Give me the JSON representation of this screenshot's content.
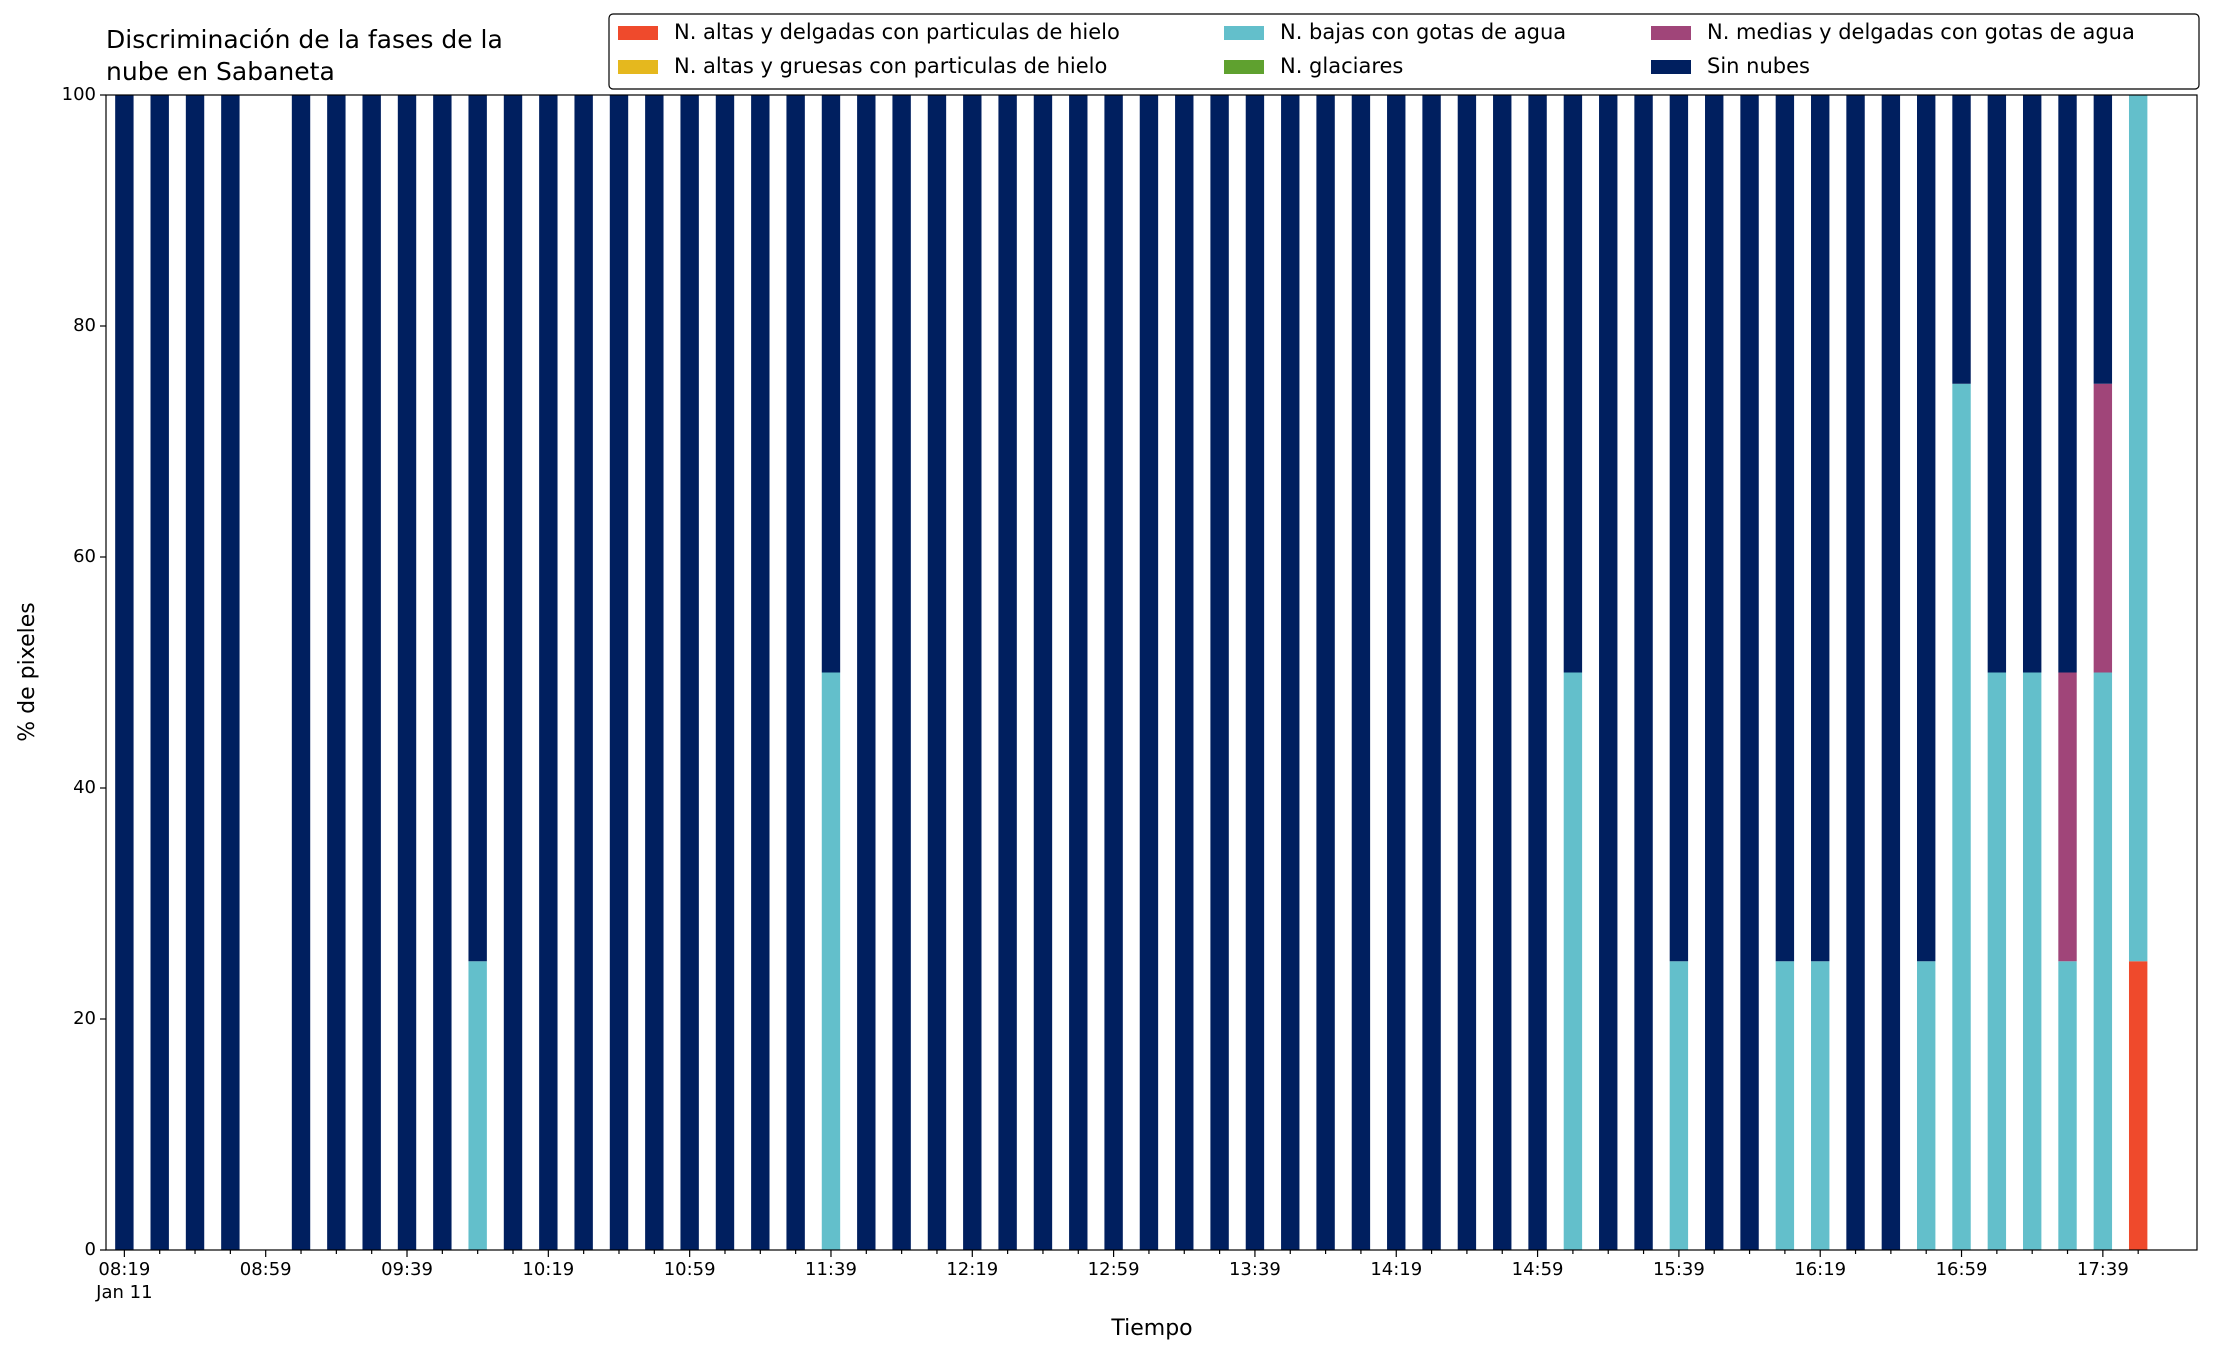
{
  "chart_data": {
    "type": "bar",
    "stacked": true,
    "title": [
      "Discriminación de la fases de la",
      "nube en Sabaneta"
    ],
    "x_label": "Tiempo",
    "y_label": "% de pixeles",
    "categories": [
      "08:19",
      null,
      null,
      null,
      "08:59",
      null,
      null,
      null,
      "09:39",
      null,
      null,
      null,
      "10:19",
      null,
      null,
      null,
      "10:59",
      null,
      null,
      null,
      "11:39",
      null,
      null,
      null,
      "12:19",
      null,
      null,
      null,
      "12:59",
      null,
      null,
      null,
      "13:39",
      null,
      null,
      null,
      "14:19",
      null,
      null,
      null,
      "14:59",
      null,
      null,
      null,
      "15:39",
      null,
      null,
      null,
      "16:19",
      null,
      null,
      null,
      "16:59",
      null,
      null,
      null,
      "17:39",
      null
    ],
    "date_label": "Jan 11",
    "series": [
      {
        "name": "N. altas y delgadas con particulas de hielo",
        "color": "#ef4a2c",
        "values": [
          0,
          0,
          0,
          0,
          0,
          0,
          0,
          0,
          0,
          0,
          0,
          0,
          0,
          0,
          0,
          0,
          0,
          0,
          0,
          0,
          0,
          0,
          0,
          0,
          0,
          0,
          0,
          0,
          0,
          0,
          0,
          0,
          0,
          0,
          0,
          0,
          0,
          0,
          0,
          0,
          0,
          0,
          0,
          0,
          0,
          0,
          0,
          0,
          0,
          0,
          0,
          0,
          0,
          0,
          0,
          0,
          0,
          25
        ]
      },
      {
        "name": "N. altas y gruesas con particulas de hielo",
        "color": "#e5b81e",
        "values": [
          0,
          0,
          0,
          0,
          0,
          0,
          0,
          0,
          0,
          0,
          0,
          0,
          0,
          0,
          0,
          0,
          0,
          0,
          0,
          0,
          0,
          0,
          0,
          0,
          0,
          0,
          0,
          0,
          0,
          0,
          0,
          0,
          0,
          0,
          0,
          0,
          0,
          0,
          0,
          0,
          0,
          0,
          0,
          0,
          0,
          0,
          0,
          0,
          0,
          0,
          0,
          0,
          0,
          0,
          0,
          0,
          0,
          0
        ]
      },
      {
        "name": "N. bajas con gotas de agua",
        "color": "#63bfcb",
        "values": [
          0,
          0,
          0,
          0,
          0,
          0,
          0,
          0,
          0,
          0,
          25,
          0,
          0,
          0,
          0,
          0,
          0,
          0,
          0,
          0,
          50,
          0,
          0,
          0,
          0,
          0,
          0,
          0,
          0,
          0,
          0,
          0,
          0,
          0,
          0,
          0,
          0,
          0,
          0,
          0,
          0,
          50,
          0,
          0,
          25,
          0,
          0,
          25,
          25,
          0,
          0,
          25,
          75,
          50,
          50,
          25,
          50,
          75
        ]
      },
      {
        "name": "N. glaciares",
        "color": "#5fa12f",
        "values": [
          0,
          0,
          0,
          0,
          0,
          0,
          0,
          0,
          0,
          0,
          0,
          0,
          0,
          0,
          0,
          0,
          0,
          0,
          0,
          0,
          0,
          0,
          0,
          0,
          0,
          0,
          0,
          0,
          0,
          0,
          0,
          0,
          0,
          0,
          0,
          0,
          0,
          0,
          0,
          0,
          0,
          0,
          0,
          0,
          0,
          0,
          0,
          0,
          0,
          0,
          0,
          0,
          0,
          0,
          0,
          0,
          0,
          0
        ]
      },
      {
        "name": "N. medias y delgadas con gotas de agua",
        "color": "#a04579",
        "values": [
          0,
          0,
          0,
          0,
          0,
          0,
          0,
          0,
          0,
          0,
          0,
          0,
          0,
          0,
          0,
          0,
          0,
          0,
          0,
          0,
          0,
          0,
          0,
          0,
          0,
          0,
          0,
          0,
          0,
          0,
          0,
          0,
          0,
          0,
          0,
          0,
          0,
          0,
          0,
          0,
          0,
          0,
          0,
          0,
          0,
          0,
          0,
          0,
          0,
          0,
          0,
          0,
          0,
          0,
          0,
          25,
          25,
          0
        ]
      },
      {
        "name": "Sin nubes",
        "color": "#001f5f",
        "values": [
          100,
          100,
          100,
          100,
          0,
          100,
          100,
          100,
          100,
          100,
          75,
          100,
          100,
          100,
          100,
          100,
          100,
          100,
          100,
          100,
          50,
          100,
          100,
          100,
          100,
          100,
          100,
          100,
          100,
          100,
          100,
          100,
          100,
          100,
          100,
          100,
          100,
          100,
          100,
          100,
          100,
          50,
          100,
          100,
          75,
          100,
          100,
          75,
          75,
          100,
          100,
          75,
          25,
          50,
          50,
          50,
          25,
          0
        ]
      }
    ],
    "ylim": [
      0,
      100
    ],
    "yticks": [
      0,
      20,
      40,
      60,
      80,
      100
    ],
    "grid": false,
    "legend": "upper right"
  }
}
